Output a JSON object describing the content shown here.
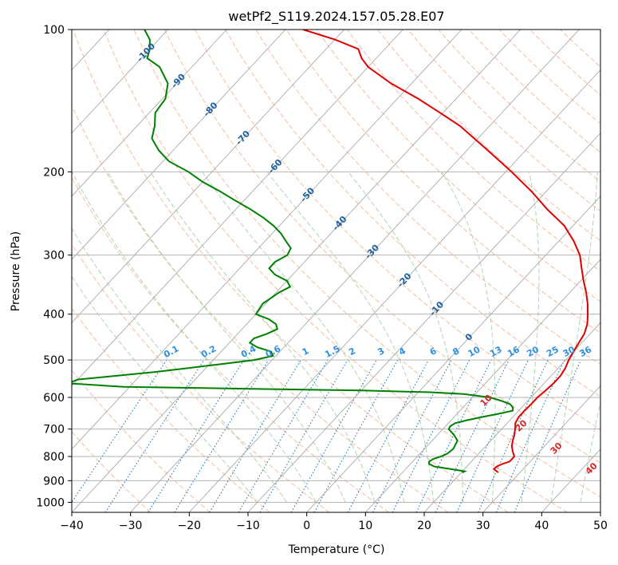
{
  "chart_data": {
    "type": "line",
    "chart_kind": "skew-T log-P diagram",
    "title": "wetPf2_S119.2024.157.05.28.E07",
    "xlabel": "Temperature (°C)",
    "ylabel": "Pressure (hPa)",
    "xlim": [
      -40,
      50
    ],
    "ylim": [
      1050,
      100
    ],
    "y_scale": "log",
    "x_ticks": [
      -40,
      -30,
      -20,
      -10,
      0,
      10,
      20,
      30,
      40,
      50
    ],
    "x_tick_labels": [
      "−40",
      "−30",
      "−20",
      "−10",
      "0",
      "10",
      "20",
      "30",
      "40",
      "50"
    ],
    "y_ticks": [
      100,
      200,
      300,
      400,
      500,
      600,
      700,
      800,
      900,
      1000
    ],
    "y_tick_labels": [
      "100",
      "200",
      "300",
      "400",
      "500",
      "600",
      "700",
      "800",
      "900",
      "1000"
    ],
    "grid": true,
    "colors": {
      "temperature": "#e00000",
      "dewpoint": "#008000",
      "isotherm_grid": "#aaaaaa",
      "dry_adiabat": "#f4a582",
      "moist_adiabat": "#99cc99",
      "mixing_ratio": "#1f78d1",
      "isotherm_labels": "#1f5f9f",
      "mixing_ratio_labels": "#3090e0",
      "wet_bulb_labels": "#d62728"
    },
    "series": [
      {
        "role": "temperature",
        "color": "#e00000",
        "pressure": [
          865,
          850,
          840,
          830,
          820,
          800,
          780,
          760,
          740,
          720,
          700,
          680,
          660,
          640,
          620,
          600,
          580,
          560,
          540,
          520,
          500,
          480,
          460,
          440,
          420,
          400,
          380,
          360,
          340,
          320,
          300,
          280,
          260,
          240,
          220,
          200,
          180,
          160,
          150,
          140,
          130,
          120,
          115,
          110,
          105,
          100
        ],
        "temperature": [
          26.3,
          25.0,
          25.1,
          25.6,
          26.5,
          26.5,
          25.4,
          24.4,
          23.7,
          23.1,
          22.3,
          21.4,
          21.0,
          21.0,
          21.1,
          21.1,
          21.4,
          21.6,
          21.6,
          21.2,
          20.5,
          20.0,
          19.5,
          19.0,
          18.0,
          16.5,
          14.8,
          12.8,
          10.5,
          8.2,
          5.8,
          2.5,
          -1.5,
          -7.0,
          -12.5,
          -19.0,
          -26.5,
          -35.0,
          -40.5,
          -46.5,
          -53.5,
          -60.0,
          -62.5,
          -64.5,
          -70.0,
          -77.0
        ]
      },
      {
        "role": "dewpoint",
        "color": "#008000",
        "pressure": [
          865,
          860,
          855,
          850,
          845,
          840,
          830,
          820,
          810,
          800,
          790,
          780,
          770,
          760,
          740,
          720,
          700,
          690,
          680,
          670,
          660,
          650,
          640,
          630,
          620,
          610,
          600,
          590,
          585,
          580,
          575,
          570,
          560,
          550,
          545,
          540,
          535,
          530,
          520,
          510,
          500,
          490,
          480,
          470,
          460,
          450,
          440,
          430,
          420,
          410,
          400,
          380,
          360,
          350,
          340,
          330,
          320,
          310,
          300,
          290,
          280,
          270,
          260,
          250,
          240,
          230,
          220,
          210,
          200,
          190,
          180,
          170,
          160,
          150,
          140,
          130,
          120,
          115,
          110,
          105,
          100
        ],
        "temperature": [
          20.2,
          20.4,
          19.0,
          17.5,
          16.0,
          14.5,
          13.2,
          12.8,
          13.1,
          14.0,
          14.6,
          14.8,
          14.9,
          14.7,
          14.3,
          12.8,
          11.0,
          10.8,
          11.2,
          12.8,
          14.8,
          17.0,
          19.0,
          18.5,
          17.5,
          15.5,
          13.0,
          8.0,
          2.0,
          -10.0,
          -30.0,
          -51.0,
          -61.0,
          -60.0,
          -57.0,
          -54.0,
          -51.0,
          -48.0,
          -43.0,
          -38.0,
          -33.0,
          -30.5,
          -31.5,
          -34.5,
          -36.5,
          -36.5,
          -35.0,
          -34.0,
          -35.0,
          -37.0,
          -40.0,
          -40.5,
          -39.5,
          -38.5,
          -40.0,
          -43.0,
          -45.0,
          -45.0,
          -44.0,
          -44.5,
          -46.5,
          -48.5,
          -51.0,
          -54.0,
          -57.5,
          -61.5,
          -65.5,
          -70.0,
          -74.0,
          -79.0,
          -82.5,
          -85.5,
          -87.0,
          -89.0,
          -89.5,
          -91.5,
          -95.5,
          -99.0,
          -100.0,
          -101.5,
          -104.0
        ]
      }
    ],
    "isotherm_labels": [
      {
        "text": "-100",
        "temperature": -100
      },
      {
        "text": "-90",
        "temperature": -90
      },
      {
        "text": "-80",
        "temperature": -80
      },
      {
        "text": "-70",
        "temperature": -70
      },
      {
        "text": "-60",
        "temperature": -60
      },
      {
        "text": "-50",
        "temperature": -50
      },
      {
        "text": "-40",
        "temperature": -40
      },
      {
        "text": "-30",
        "temperature": -30
      },
      {
        "text": "-20",
        "temperature": -20
      },
      {
        "text": "-10",
        "temperature": -10
      },
      {
        "text": "0",
        "temperature": 0
      }
    ],
    "mixing_ratio_labels": [
      "0.1",
      "0.2",
      "0.4",
      "0.6",
      "1",
      "1.5",
      "2",
      "3",
      "4",
      "6",
      "8",
      "10",
      "13",
      "16",
      "20",
      "25",
      "30",
      "36"
    ],
    "wet_bulb_labels": [
      {
        "text": "10",
        "temperature": 10
      },
      {
        "text": "20",
        "temperature": 20
      },
      {
        "text": "30",
        "temperature": 30
      },
      {
        "text": "40",
        "temperature": 40
      }
    ]
  }
}
